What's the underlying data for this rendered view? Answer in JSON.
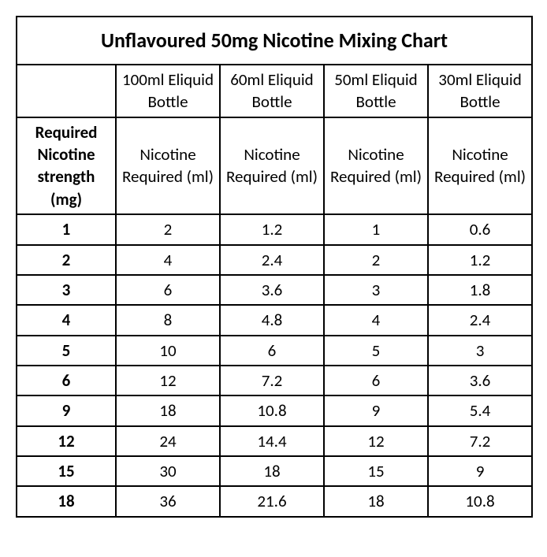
{
  "table": {
    "title": "Unflavoured 50mg Nicotine Mixing Chart",
    "bottle_headers": [
      "100ml Eliquid Bottle",
      "60ml Eliquid Bottle",
      "50ml Eliquid Bottle",
      "30ml Eliquid Bottle"
    ],
    "row_label": "Required Nicotine strength (mg)",
    "col_subheader": "Nicotine Required (ml)",
    "rows": [
      {
        "mg": "1",
        "vals": [
          "2",
          "1.2",
          "1",
          "0.6"
        ]
      },
      {
        "mg": "2",
        "vals": [
          "4",
          "2.4",
          "2",
          "1.2"
        ]
      },
      {
        "mg": "3",
        "vals": [
          "6",
          "3.6",
          "3",
          "1.8"
        ]
      },
      {
        "mg": "4",
        "vals": [
          "8",
          "4.8",
          "4",
          "2.4"
        ]
      },
      {
        "mg": "5",
        "vals": [
          "10",
          "6",
          "5",
          "3"
        ]
      },
      {
        "mg": "6",
        "vals": [
          "12",
          "7.2",
          "6",
          "3.6"
        ]
      },
      {
        "mg": "9",
        "vals": [
          "18",
          "10.8",
          "9",
          "5.4"
        ]
      },
      {
        "mg": "12",
        "vals": [
          "24",
          "14.4",
          "12",
          "7.2"
        ]
      },
      {
        "mg": "15",
        "vals": [
          "30",
          "18",
          "15",
          "9"
        ]
      },
      {
        "mg": "18",
        "vals": [
          "36",
          "21.6",
          "18",
          "10.8"
        ]
      }
    ],
    "style": {
      "border_color": "#000000",
      "background_color": "#ffffff",
      "title_fontsize": 26,
      "cell_fontsize": 21,
      "font_family": "Calibri"
    }
  }
}
